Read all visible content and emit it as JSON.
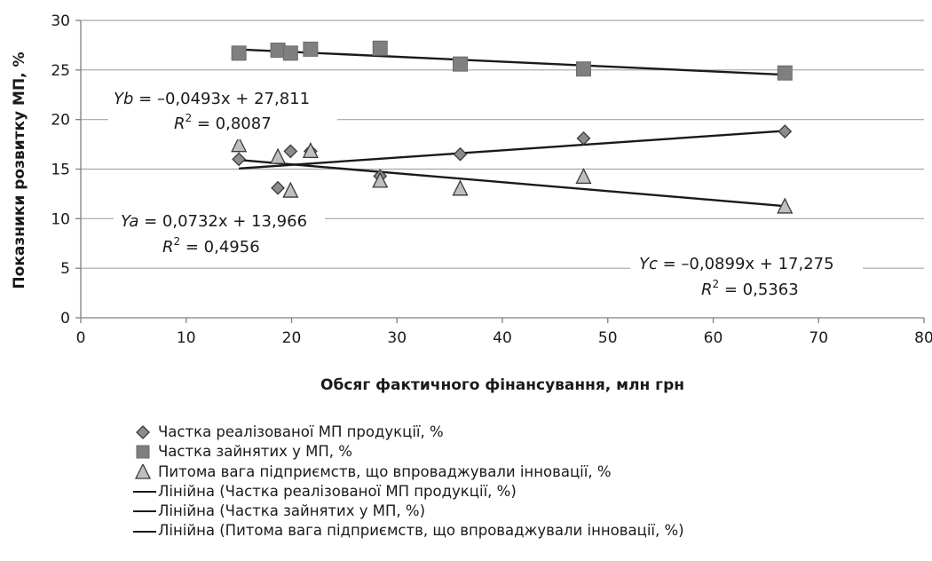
{
  "chart_data": {
    "type": "scatter",
    "xlabel": "Обсяг фактичного фінансування, млн грн",
    "ylabel": "Показники розвитку МП, %",
    "xlim": [
      0,
      80
    ],
    "ylim": [
      0,
      30
    ],
    "xticks": [
      0,
      10,
      20,
      30,
      40,
      50,
      60,
      70,
      80
    ],
    "yticks": [
      0,
      5,
      10,
      15,
      20,
      25,
      30
    ],
    "grid": "horizontal",
    "legend_position": "bottom",
    "series": [
      {
        "name": "Частка реалізованої МП продукції, %",
        "marker": "diamond",
        "color": "#8c8c8c",
        "points": [
          [
            15,
            16.0
          ],
          [
            18.7,
            13.1
          ],
          [
            19.9,
            16.8
          ],
          [
            21.8,
            16.8
          ],
          [
            28.4,
            14.3
          ],
          [
            36,
            16.5
          ],
          [
            47.7,
            18.1
          ],
          [
            66.8,
            18.8
          ]
        ]
      },
      {
        "name": "Частка зайнятих у МП, %",
        "marker": "square",
        "color": "#7f7f7f",
        "points": [
          [
            15,
            26.7
          ],
          [
            18.7,
            27.0
          ],
          [
            19.9,
            26.7
          ],
          [
            21.8,
            27.1
          ],
          [
            28.4,
            27.2
          ],
          [
            36,
            25.6
          ],
          [
            47.7,
            25.1
          ],
          [
            66.8,
            24.7
          ]
        ]
      },
      {
        "name": "Питома вага підприємств, що впроваджували інновації, %",
        "marker": "triangle",
        "color": "#bfbfbf",
        "points": [
          [
            15,
            17.4
          ],
          [
            18.7,
            16.2
          ],
          [
            19.9,
            12.8
          ],
          [
            21.8,
            16.8
          ],
          [
            28.4,
            13.8
          ],
          [
            36,
            13.0
          ],
          [
            47.7,
            14.2
          ],
          [
            66.8,
            11.2
          ]
        ]
      }
    ],
    "trendlines": [
      {
        "name": "Лінійна (Частка реалізованої МП продукції, %)",
        "slope": 0.0732,
        "intercept": 13.966,
        "x_range": [
          15,
          66.8
        ],
        "equation_prefix": "Ya",
        "equation_rest": " = 0,0732x + 13,966",
        "r2_value": " = 0,4956"
      },
      {
        "name": "Лінійна (Частка зайнятих у МП, %)",
        "slope": -0.0493,
        "intercept": 27.811,
        "x_range": [
          15,
          66.8
        ],
        "equation_prefix": "Yb",
        "equation_rest": " = –0,0493x + 27,811",
        "r2_value": " = 0,8087"
      },
      {
        "name": "Лінійна (Питома вага підприємств, що впроваджували інновації, %)",
        "slope": -0.0899,
        "intercept": 17.275,
        "x_range": [
          15,
          66.8
        ],
        "equation_prefix": "Yc",
        "equation_rest": " = –0,0899x + 17,275",
        "r2_value": " = 0,5363"
      }
    ]
  },
  "legend": [
    {
      "marker": "diamond",
      "label": "Частка реалізованої МП продукції, %"
    },
    {
      "marker": "square",
      "label": "Частка зайнятих у МП, %"
    },
    {
      "marker": "triangle",
      "label": "Питома вага підприємств, що впроваджували інновації, %"
    },
    {
      "marker": "line",
      "label": "Лінійна (Частка реалізованої МП продукції, %)"
    },
    {
      "marker": "line",
      "label": "Лінійна (Частка зайнятих у МП, %)"
    },
    {
      "marker": "line",
      "label": "Лінійна (Питома вага підприємств, що впроваджували інновації, %)"
    }
  ]
}
